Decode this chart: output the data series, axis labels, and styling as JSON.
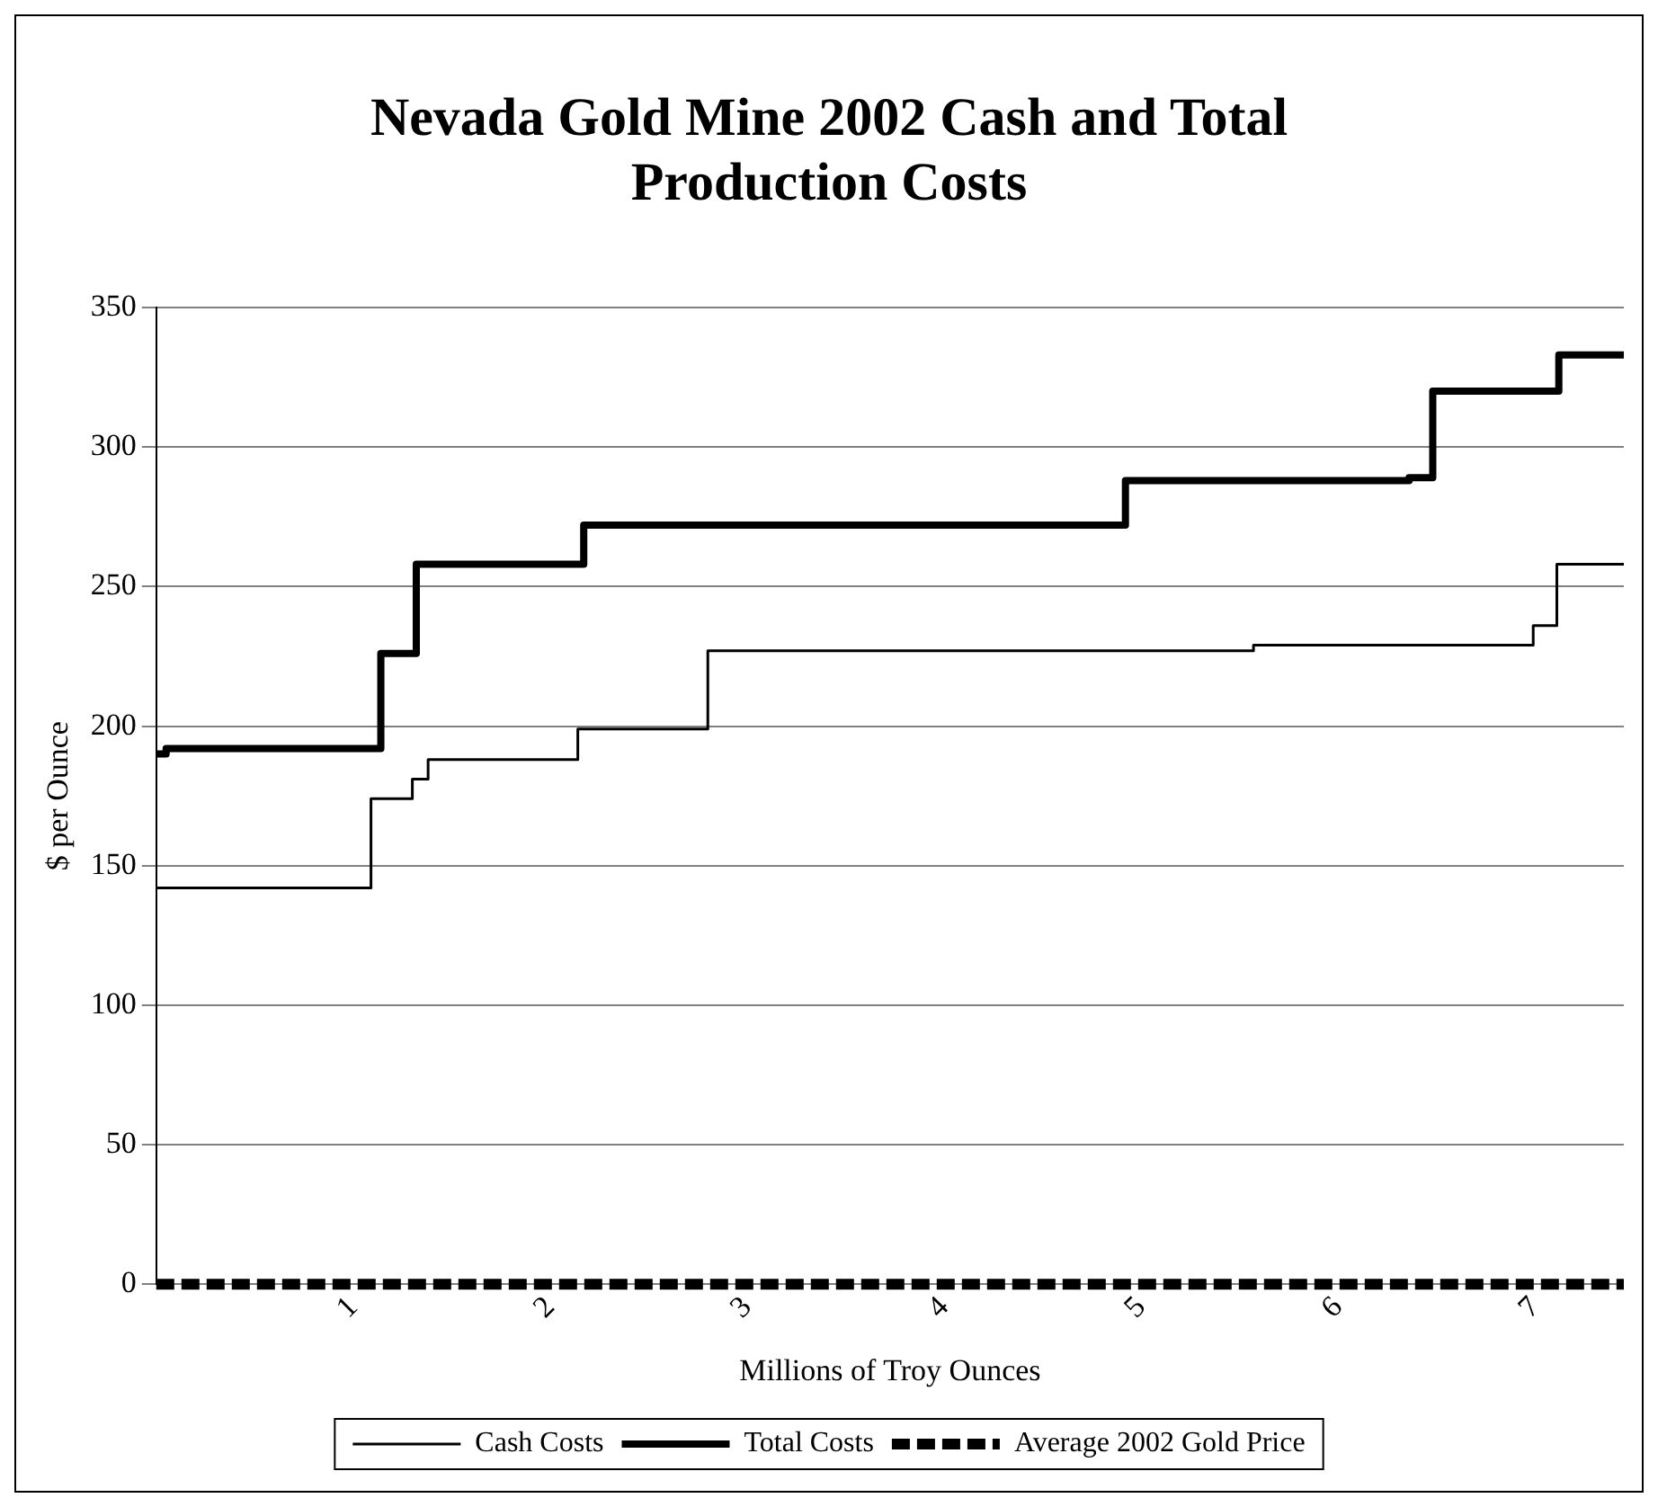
{
  "chart_data": {
    "type": "step",
    "title": "Nevada Gold Mine 2002 Cash and Total Production Costs",
    "xlabel": "Millions of Troy Ounces",
    "ylabel": "$ per Ounce",
    "xlim": [
      0,
      7.45
    ],
    "xticks": [
      1,
      2,
      3,
      4,
      5,
      6,
      7
    ],
    "ylim": [
      0,
      350
    ],
    "yticks": [
      0,
      50,
      100,
      150,
      200,
      250,
      300,
      350
    ],
    "grid": "y",
    "legend": "bottom",
    "series": [
      {
        "name": "Cash Costs",
        "color": "#000000",
        "x": [
          0,
          1.09,
          1.3,
          1.38,
          2.14,
          2.8,
          5.57,
          6.99,
          7.11,
          7.45
        ],
        "values": [
          142,
          174,
          181,
          188,
          199,
          227,
          229,
          236,
          258,
          258
        ]
      },
      {
        "name": "Total Costs",
        "color": "#000000",
        "x": [
          0,
          0.05,
          1.14,
          1.32,
          2.17,
          4.92,
          6.36,
          6.48,
          7.12,
          7.45
        ],
        "values": [
          190,
          192,
          226,
          258,
          272,
          288,
          289,
          320,
          333,
          333
        ]
      },
      {
        "name": "Average 2002 Gold Price",
        "color": "#000000",
        "type": "line",
        "line_style": "dashed",
        "x": [
          0,
          7.45
        ],
        "values": [
          0,
          0
        ]
      }
    ]
  }
}
